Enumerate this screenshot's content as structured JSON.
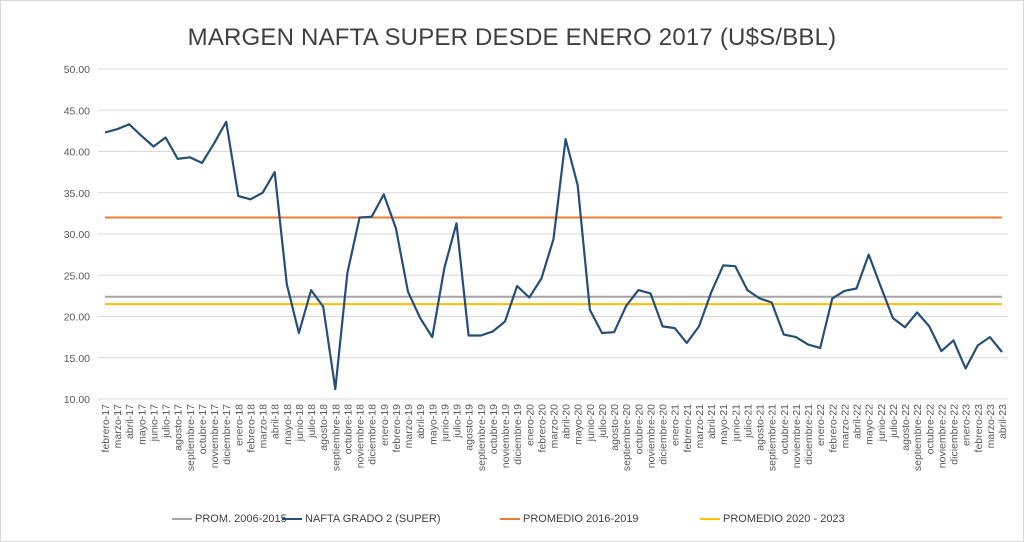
{
  "chart_data": {
    "type": "line",
    "title": "MARGEN NAFTA SUPER DESDE ENERO 2017 (U$S/BBL)",
    "xlabel": "",
    "ylabel": "",
    "ylim": [
      10,
      50
    ],
    "yticks": [
      "10.00",
      "15.00",
      "20.00",
      "25.00",
      "30.00",
      "35.00",
      "40.00",
      "45.00",
      "50.00"
    ],
    "ytick_values": [
      10,
      15,
      20,
      25,
      30,
      35,
      40,
      45,
      50
    ],
    "grid": true,
    "legend_position": "bottom",
    "categories": [
      "febrero-17",
      "marzo-17",
      "abril-17",
      "mayo-17",
      "junio-17",
      "julio-17",
      "agosto-17",
      "septiembre-17",
      "octubre-17",
      "noviembre-17",
      "diciembre-17",
      "enero-18",
      "febrero-18",
      "marzo-18",
      "abril-18",
      "mayo-18",
      "junio-18",
      "julio-18",
      "agosto-18",
      "septiembre-18",
      "octubre-18",
      "noviembre-18",
      "diciembre-18",
      "enero-19",
      "febrero-19",
      "marzo-19",
      "abril-19",
      "mayo-19",
      "junio-19",
      "julio-19",
      "agosto-19",
      "septiembre-19",
      "octubre-19",
      "noviembre-19",
      "diciembre-19",
      "enero-20",
      "febrero-20",
      "marzo-20",
      "abril-20",
      "mayo-20",
      "junio-20",
      "julio-20",
      "agosto-20",
      "septiembre-20",
      "octubre-20",
      "noviembre-20",
      "diciembre-20",
      "enero-21",
      "febrero-21",
      "marzo-21",
      "abril-21",
      "mayo-21",
      "junio-21",
      "julio-21",
      "agosto-21",
      "septiembre-21",
      "octubre-21",
      "noviembre-21",
      "diciembre-21",
      "enero-22",
      "febrero-22",
      "marzo-22",
      "abril-22",
      "mayo-22",
      "junio-22",
      "julio-22",
      "agosto-22",
      "septiembre-22",
      "octubre-22",
      "noviembre-22",
      "diciembre-22",
      "enero-23",
      "febrero-23",
      "marzo-23",
      "abril-23"
    ],
    "series": [
      {
        "name": "PROM. 2006-2015",
        "color": "#a5a5a5",
        "constant": 22.4
      },
      {
        "name": "NAFTA GRADO 2 (SUPER)",
        "color": "#264f78",
        "values": [
          42.3,
          42.7,
          43.3,
          41.9,
          40.6,
          41.7,
          39.1,
          39.3,
          38.6,
          41.0,
          43.6,
          34.6,
          34.2,
          35.0,
          37.5,
          23.9,
          18.0,
          23.2,
          21.2,
          11.2,
          25.3,
          32.0,
          32.1,
          34.8,
          30.7,
          23.0,
          19.8,
          17.5,
          25.9,
          31.3,
          17.7,
          17.7,
          18.2,
          19.4,
          23.7,
          22.3,
          24.6,
          29.4,
          41.5,
          35.9,
          20.8,
          18.0,
          18.1,
          21.3,
          23.2,
          22.8,
          18.8,
          18.6,
          16.8,
          18.8,
          22.9,
          26.2,
          26.1,
          23.2,
          22.2,
          21.7,
          17.8,
          17.5,
          16.6,
          16.2,
          22.2,
          23.1,
          23.4,
          27.5,
          23.6,
          19.8,
          18.7,
          20.5,
          18.8,
          15.8,
          17.1,
          13.7,
          16.5,
          17.5,
          15.7
        ]
      },
      {
        "name": "PROMEDIO 2016-2019",
        "color": "#ed7d31",
        "constant": 32.0
      },
      {
        "name": "PROMEDIO 2020 - 2023",
        "color": "#ffc000",
        "constant": 21.5
      }
    ]
  }
}
